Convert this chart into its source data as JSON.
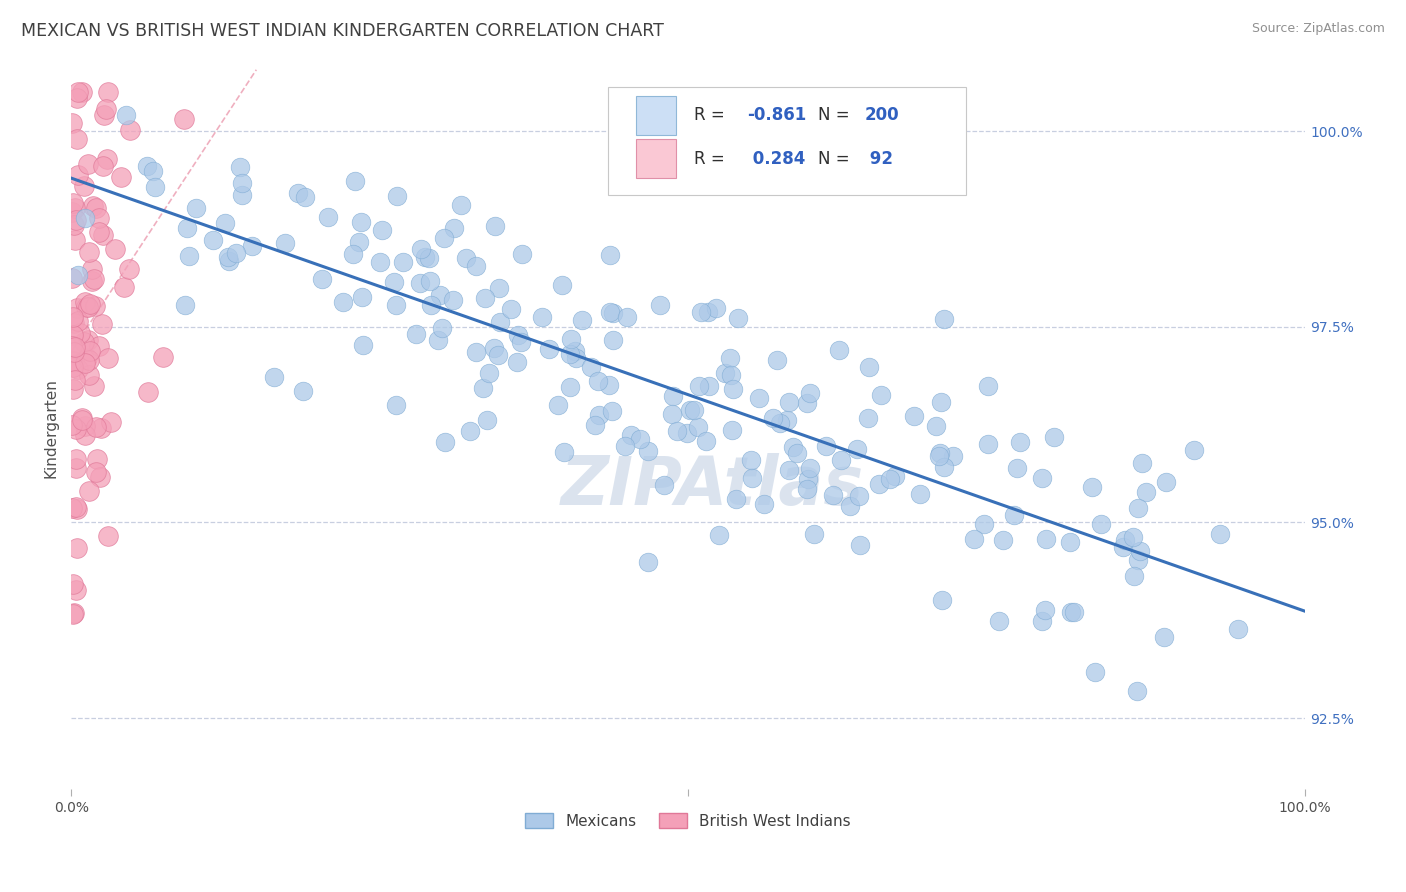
{
  "title": "MEXICAN VS BRITISH WEST INDIAN KINDERGARTEN CORRELATION CHART",
  "source": "Source: ZipAtlas.com",
  "ylabel": "Kindergarten",
  "ytick_labels": [
    "92.5%",
    "95.0%",
    "97.5%",
    "100.0%"
  ],
  "ytick_values": [
    0.925,
    0.95,
    0.975,
    1.0
  ],
  "xlim": [
    0.0,
    1.0
  ],
  "ylim": [
    0.916,
    1.008
  ],
  "blue_R": -0.861,
  "blue_N": 200,
  "pink_R": 0.284,
  "pink_N": 92,
  "blue_color": "#adc9e8",
  "pink_color": "#f4a0b8",
  "blue_edge": "#80acd4",
  "pink_edge": "#e07898",
  "trendline_color": "#3870b8",
  "pink_trendline_color": "#e06080",
  "legend_box_blue": "#ccdff5",
  "legend_box_pink": "#fac8d4",
  "legend_text_color": "#3060c0",
  "watermark_text": "ZIPAtlas",
  "watermark_color": "#ccd8e8",
  "background_color": "#ffffff",
  "grid_color": "#c8cfe0",
  "title_color": "#404040",
  "source_color": "#909090",
  "ytick_color": "#4070c0"
}
